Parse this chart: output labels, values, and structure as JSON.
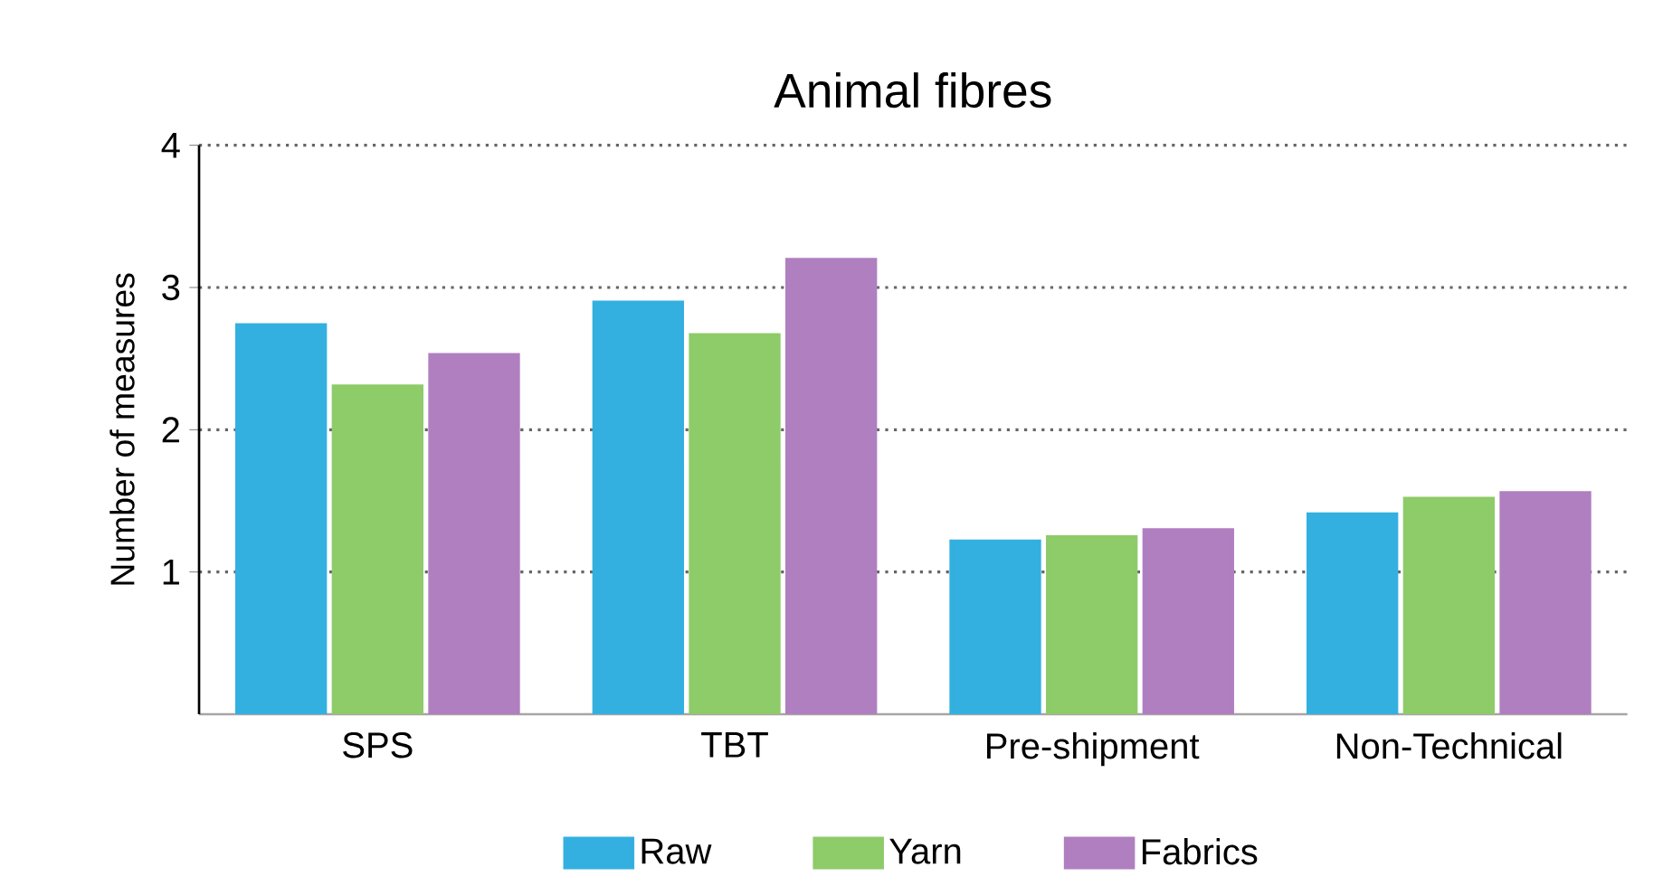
{
  "chart_data": {
    "type": "bar",
    "title": "Animal fibres",
    "ylabel": "Number of measures",
    "categories": [
      "SPS",
      "TBT",
      "Pre-shipment",
      "Non-Technical"
    ],
    "series": [
      {
        "name": "Raw",
        "color": "#33b0e0",
        "values": [
          2.74,
          2.9,
          1.22,
          1.41
        ]
      },
      {
        "name": "Yarn",
        "color": "#8ecb69",
        "values": [
          2.31,
          2.67,
          1.25,
          1.52
        ]
      },
      {
        "name": "Fabrics",
        "color": "#b07fc0",
        "values": [
          2.53,
          3.2,
          1.3,
          1.56
        ]
      }
    ],
    "ylim": [
      0,
      4
    ],
    "yticks": [
      1,
      2,
      3,
      4
    ],
    "grid": "y",
    "legend": "bottom"
  }
}
